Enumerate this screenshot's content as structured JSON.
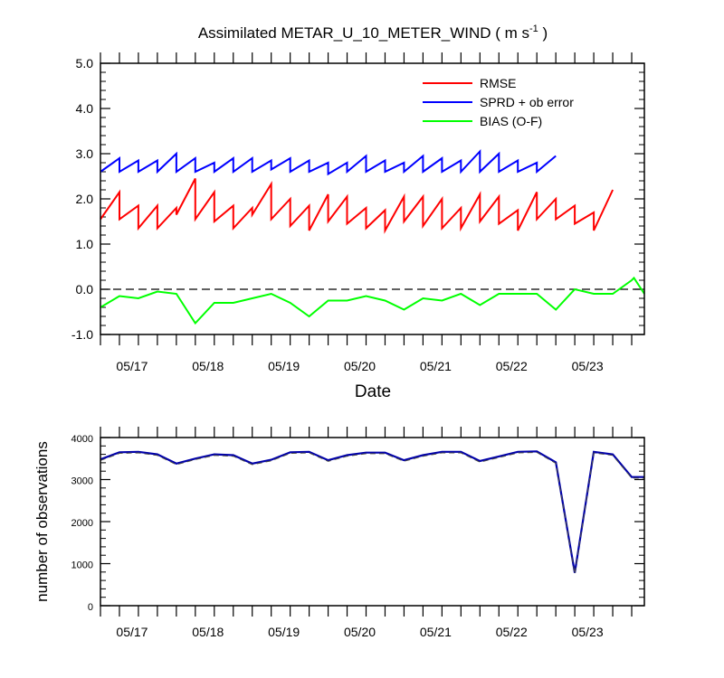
{
  "chart_data": [
    {
      "type": "line",
      "title": "Assimilated METAR_U_10_METER_WIND ( m s",
      "title_unit_exponent": "-1",
      "title_close": " )",
      "xlabel": "Date",
      "ylabel": "",
      "ylim": [
        -1.0,
        5.0
      ],
      "yticks": [
        -1.0,
        0.0,
        1.0,
        2.0,
        3.0,
        4.0,
        5.0
      ],
      "ytick_labels": [
        "-1.0",
        "0.0",
        "1.0",
        "2.0",
        "3.0",
        "4.0",
        "5.0"
      ],
      "xlim": [
        "2023-05-16T20:00",
        "2023-05-24T00:00"
      ],
      "xtick_labels": [
        "05/17",
        "05/18",
        "05/19",
        "05/20",
        "05/21",
        "05/22",
        "05/23"
      ],
      "xtick_dates": [
        "2023-05-17T06:00",
        "2023-05-18T06:00",
        "2023-05-19T06:00",
        "2023-05-20T06:00",
        "2023-05-21T06:00",
        "2023-05-22T06:00",
        "2023-05-23T06:00"
      ],
      "zero_line": true,
      "grid": false,
      "legend": "top-right",
      "x": [
        "2023-05-16T20:00",
        "2023-05-17T02:00",
        "2023-05-17T08:00",
        "2023-05-17T14:00",
        "2023-05-17T20:00",
        "2023-05-18T02:00",
        "2023-05-18T08:00",
        "2023-05-18T14:00",
        "2023-05-18T20:00",
        "2023-05-19T02:00",
        "2023-05-19T08:00",
        "2023-05-19T14:00",
        "2023-05-19T20:00",
        "2023-05-20T02:00",
        "2023-05-20T08:00",
        "2023-05-20T14:00",
        "2023-05-20T20:00",
        "2023-05-21T02:00",
        "2023-05-21T08:00",
        "2023-05-21T14:00",
        "2023-05-21T20:00",
        "2023-05-22T02:00",
        "2023-05-22T08:00",
        "2023-05-22T14:00",
        "2023-05-22T20:00",
        "2023-05-23T02:00",
        "2023-05-23T08:00",
        "2023-05-23T14:00",
        "2023-05-23T20:00"
      ],
      "series": [
        {
          "name": "RMSE",
          "color": "#ff0000",
          "values": [
            [
              1.55,
              2.15
            ],
            [
              1.55,
              1.85
            ],
            [
              1.35,
              1.85
            ],
            [
              1.35,
              1.8
            ],
            [
              1.65,
              2.45
            ],
            [
              1.55,
              2.15
            ],
            [
              1.5,
              1.85
            ],
            [
              1.35,
              1.8
            ],
            [
              1.65,
              2.33
            ],
            [
              1.55,
              2.0
            ],
            [
              1.4,
              1.85
            ],
            [
              1.3,
              2.1
            ],
            [
              1.5,
              2.05
            ],
            [
              1.45,
              1.8
            ],
            [
              1.35,
              1.75
            ],
            [
              1.3,
              2.05
            ],
            [
              1.5,
              2.05
            ],
            [
              1.4,
              2.0
            ],
            [
              1.35,
              1.8
            ],
            [
              1.35,
              2.1
            ],
            [
              1.5,
              2.05
            ],
            [
              1.45,
              1.75
            ],
            [
              1.3,
              2.15
            ],
            [
              1.55,
              2.0
            ],
            [
              1.55,
              1.85
            ],
            [
              1.45,
              1.7
            ],
            [
              1.3,
              2.2
            ],
            [
              null,
              null
            ],
            [
              null,
              null
            ]
          ]
        },
        {
          "name": "SPRD + ob error",
          "color": "#0000ff",
          "values": [
            [
              2.6,
              2.9
            ],
            [
              2.6,
              2.85
            ],
            [
              2.6,
              2.85
            ],
            [
              2.6,
              3.0
            ],
            [
              2.6,
              2.9
            ],
            [
              2.6,
              2.8
            ],
            [
              2.6,
              2.9
            ],
            [
              2.6,
              2.9
            ],
            [
              2.6,
              2.85
            ],
            [
              2.65,
              2.9
            ],
            [
              2.6,
              2.85
            ],
            [
              2.6,
              2.8
            ],
            [
              2.55,
              2.8
            ],
            [
              2.6,
              2.95
            ],
            [
              2.6,
              2.85
            ],
            [
              2.6,
              2.8
            ],
            [
              2.6,
              2.95
            ],
            [
              2.6,
              2.9
            ],
            [
              2.6,
              2.85
            ],
            [
              2.6,
              3.05
            ],
            [
              2.6,
              3.0
            ],
            [
              2.6,
              2.85
            ],
            [
              2.6,
              2.8
            ],
            [
              2.6,
              2.95
            ],
            [
              null,
              null
            ],
            [
              null,
              null
            ],
            [
              null,
              null
            ],
            [
              null,
              null
            ],
            [
              null,
              null
            ]
          ]
        },
        {
          "name": "BIAS (O-F)",
          "color": "#00ff00",
          "values": [
            -0.4,
            -0.15,
            -0.2,
            -0.05,
            -0.1,
            -0.75,
            -0.3,
            -0.3,
            -0.2,
            -0.1,
            -0.3,
            -0.6,
            -0.25,
            -0.25,
            -0.15,
            -0.25,
            -0.45,
            -0.2,
            -0.25,
            -0.1,
            -0.35,
            -0.1,
            -0.1,
            -0.1,
            -0.45,
            0.0,
            -0.1,
            -0.1,
            0.2
          ]
        }
      ]
    },
    {
      "type": "line",
      "title": "",
      "xlabel": "",
      "ylabel": "number of observations",
      "ylim": [
        0,
        4000
      ],
      "yticks": [
        0,
        1000,
        2000,
        3000,
        4000
      ],
      "ytick_labels": [
        "0",
        "1000",
        "2000",
        "3000",
        "4000"
      ],
      "xtick_labels": [
        "05/17",
        "05/18",
        "05/19",
        "05/20",
        "05/21",
        "05/22",
        "05/23"
      ],
      "grid": false,
      "series": [
        {
          "color": "#0000aa",
          "values": [
            3480,
            3650,
            3660,
            3600,
            3380,
            3500,
            3600,
            3580,
            3380,
            3470,
            3650,
            3660,
            3460,
            3580,
            3640,
            3640,
            3460,
            3580,
            3660,
            3660,
            3440,
            3550,
            3660,
            3670,
            3410,
            780,
            3660,
            3600,
            3060
          ]
        }
      ]
    }
  ]
}
